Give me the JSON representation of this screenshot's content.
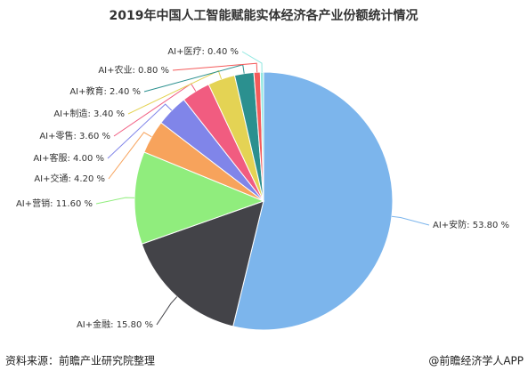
{
  "chart_data": {
    "type": "pie",
    "title": "2019年中国人工智能赋能实体经济各产业份额统计情况",
    "categories": [
      "AI+安防",
      "AI+金融",
      "AI+营销",
      "AI+交通",
      "AI+客服",
      "AI+零售",
      "AI+制造",
      "AI+教育",
      "AI+农业",
      "AI+医疗"
    ],
    "values": [
      53.8,
      15.8,
      11.6,
      4.2,
      4.0,
      3.6,
      3.4,
      2.4,
      0.8,
      0.4
    ],
    "value_labels": [
      ": 53.80 %",
      ": 15.80 %",
      ": 11.60 %",
      ": 4.20 %",
      ": 4.00 %",
      ": 3.60 %",
      ": 3.40 %",
      ": 2.40 %",
      ": 0.80 %",
      ": 0.40 %"
    ],
    "colors": [
      "#7cb5ec",
      "#434348",
      "#90ed7d",
      "#f7a35c",
      "#8085e9",
      "#f15c80",
      "#e4d354",
      "#2b908f",
      "#f45b5b",
      "#91e8e1"
    ],
    "source": "资料来源：前瞻产业研究院整理",
    "credit": "@前瞻经济学人APP"
  }
}
